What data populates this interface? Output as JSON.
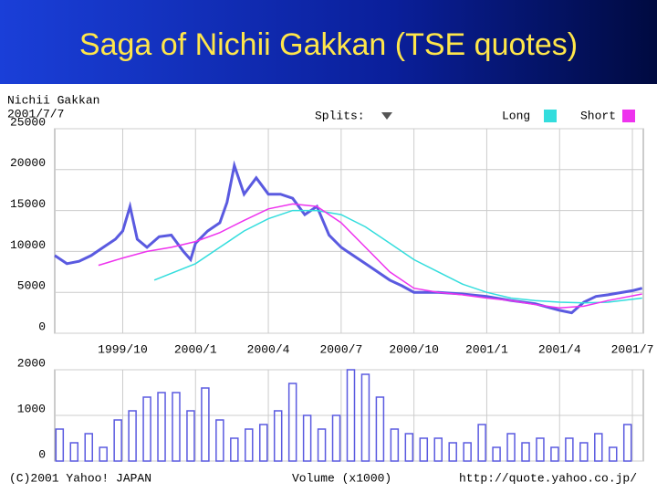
{
  "slide_title": "Saga of Nichii Gakkan (TSE quotes)",
  "header": {
    "company": "Nichii Gakkan",
    "date": "2001/7/7",
    "splits": "Splits:"
  },
  "footer": {
    "copyright": "(C)2001 Yahoo! JAPAN",
    "volume_label": "Volume (x1000)",
    "url": "http://quote.yahoo.co.jp/"
  },
  "chart_data": [
    {
      "type": "line",
      "xlim": [
        0.2,
        24.45
      ],
      "ylim": [
        0,
        25000
      ],
      "xticks": [
        {
          "value": 3,
          "label": "1999/10"
        },
        {
          "value": 6,
          "label": "2000/1"
        },
        {
          "value": 9,
          "label": "2000/4"
        },
        {
          "value": 12,
          "label": "2000/7"
        },
        {
          "value": 15,
          "label": "2000/10"
        },
        {
          "value": 18,
          "label": "2001/1"
        },
        {
          "value": 21,
          "label": "2001/4"
        },
        {
          "value": 24,
          "label": "2001/7"
        }
      ],
      "yticks": [
        0,
        5000,
        10000,
        15000,
        20000,
        25000
      ],
      "grid": true,
      "series": [
        {
          "color": "#5a5ae0",
          "x": [
            0.2,
            0.7,
            1.2,
            1.7,
            2.2,
            2.7,
            3.0,
            3.3,
            3.6,
            4,
            4.5,
            5,
            5.5,
            5.8,
            6,
            6.5,
            7,
            7.3,
            7.6,
            8,
            8.5,
            9,
            9.5,
            10,
            10.5,
            11,
            11.5,
            12,
            12.5,
            13,
            13.5,
            14,
            14.5,
            15,
            16,
            17,
            18,
            19,
            20,
            21,
            21.5,
            22,
            22.5,
            23,
            24,
            24.4
          ],
          "values": [
            9500,
            8500,
            8800,
            9500,
            10500,
            11500,
            12500,
            15500,
            11500,
            10500,
            11800,
            12000,
            10000,
            9000,
            11000,
            12500,
            13500,
            16000,
            20500,
            17000,
            19000,
            17000,
            17000,
            16500,
            14500,
            15500,
            12000,
            10500,
            9500,
            8500,
            7500,
            6500,
            5800,
            5000,
            5000,
            4800,
            4500,
            4000,
            3600,
            2800,
            2500,
            3800,
            4500,
            4700,
            5200,
            5500
          ]
        },
        {
          "name": "Long",
          "color": "#33dddd",
          "x": [
            4.3,
            6,
            7,
            8,
            9,
            10,
            11,
            12,
            13,
            14,
            15,
            16,
            17,
            18,
            19,
            20,
            21,
            22,
            23,
            24.4
          ],
          "values": [
            6500,
            8500,
            10500,
            12500,
            14000,
            15000,
            15000,
            14500,
            13000,
            11000,
            9000,
            7500,
            6000,
            5000,
            4300,
            4000,
            3800,
            3700,
            3800,
            4300
          ]
        },
        {
          "name": "Short",
          "color": "#ee33ee",
          "x": [
            2,
            3,
            4,
            5,
            6,
            7,
            8,
            9,
            10,
            11,
            12,
            13,
            14,
            15,
            16,
            17,
            18,
            19,
            20,
            21,
            22,
            23,
            24.4
          ],
          "values": [
            8300,
            9200,
            10000,
            10500,
            11200,
            12300,
            13800,
            15200,
            15800,
            15500,
            13500,
            10500,
            7500,
            5500,
            5000,
            4700,
            4300,
            4000,
            3500,
            3100,
            3300,
            4000,
            4800
          ]
        }
      ]
    },
    {
      "type": "bar",
      "color": "#5a5ae0",
      "xlim": [
        0.2,
        24.45
      ],
      "ylim": [
        0,
        2000
      ],
      "yticks": [
        0,
        1000,
        2000
      ],
      "x": [
        0.4,
        1.0,
        1.6,
        2.2,
        2.8,
        3.4,
        4.0,
        4.6,
        5.2,
        5.8,
        6.4,
        7.0,
        7.6,
        8.2,
        8.8,
        9.4,
        10.0,
        10.6,
        11.2,
        11.8,
        12.4,
        13.0,
        13.6,
        14.2,
        14.8,
        15.4,
        16.0,
        16.6,
        17.2,
        17.8,
        18.4,
        19.0,
        19.6,
        20.2,
        20.8,
        21.4,
        22.0,
        22.6,
        23.2,
        23.8
      ],
      "values": [
        700,
        400,
        600,
        300,
        900,
        1100,
        1400,
        1500,
        1500,
        1100,
        1600,
        900,
        500,
        700,
        800,
        1100,
        1700,
        1000,
        700,
        1000,
        2000,
        1900,
        1400,
        700,
        600,
        500,
        500,
        400,
        400,
        800,
        300,
        600,
        400,
        500,
        300,
        500,
        400,
        600,
        300,
        800
      ]
    }
  ]
}
